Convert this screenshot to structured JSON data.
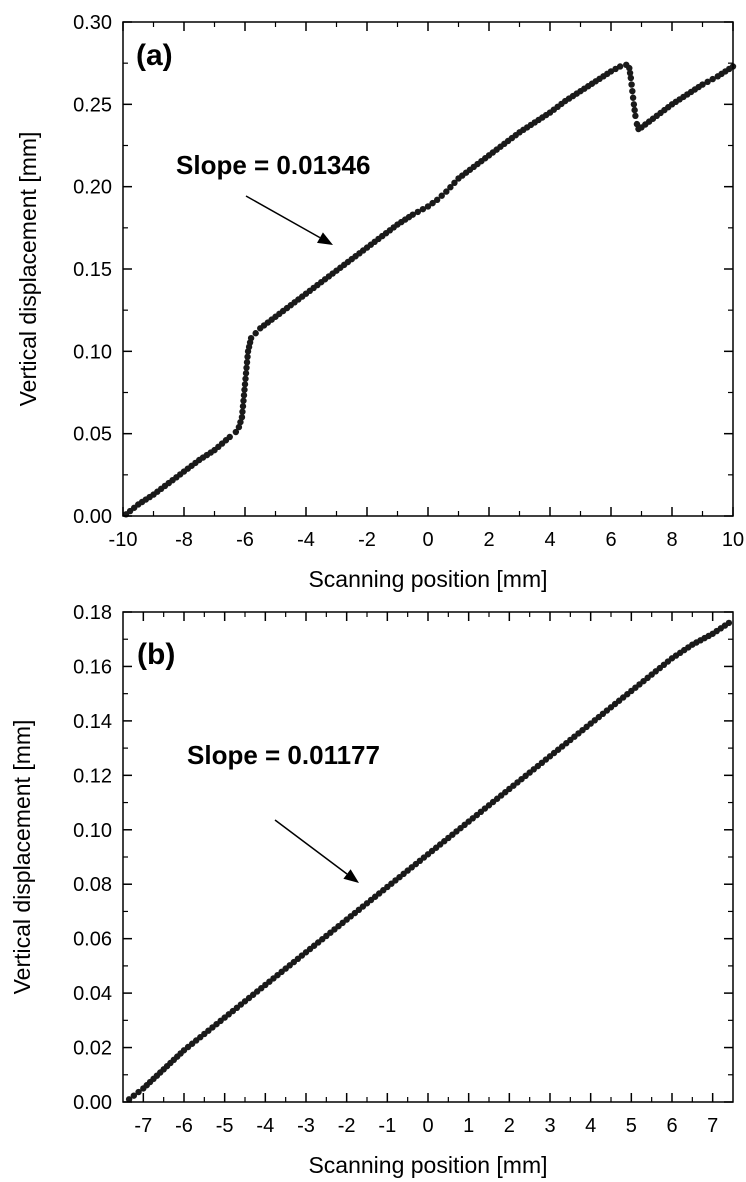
{
  "chart_data": [
    {
      "type": "scatter",
      "panel_label": "(a)",
      "xlabel": "Scanning position [mm]",
      "ylabel": "Vertical displacement [mm]",
      "xlim": [
        -10,
        10
      ],
      "ylim": [
        0,
        0.3
      ],
      "xticks": [
        -10,
        -8,
        -6,
        -4,
        -2,
        0,
        2,
        4,
        6,
        8,
        10
      ],
      "yticks": [
        "0.00",
        "0.05",
        "0.10",
        "0.15",
        "0.20",
        "0.25",
        "0.30"
      ],
      "annotation": "Slope = 0.01346",
      "series": [
        {
          "color": "#1a1a1a",
          "marker": "circle",
          "x": [
            -9.9,
            -9.5,
            -9.0,
            -8.5,
            -8.0,
            -7.5,
            -7.0,
            -6.5,
            -6.3,
            -6.2,
            -6.1,
            -6.05,
            -6.0,
            -5.95,
            -5.9,
            -5.8,
            -5.5,
            -5.0,
            -4.5,
            -4.0,
            -3.5,
            -3.0,
            -2.5,
            -2.0,
            -1.5,
            -1.0,
            -0.5,
            0.0,
            0.3,
            0.6,
            1.0,
            1.5,
            2.0,
            2.5,
            3.0,
            3.5,
            4.0,
            4.5,
            5.0,
            5.5,
            6.0,
            6.3,
            6.5,
            6.6,
            6.65,
            6.7,
            6.75,
            6.8,
            6.85,
            6.9,
            7.0,
            7.5,
            8.0,
            8.5,
            9.0,
            9.5,
            10.0
          ],
          "y": [
            0.001,
            0.007,
            0.013,
            0.02,
            0.027,
            0.034,
            0.04,
            0.048,
            0.051,
            0.054,
            0.06,
            0.07,
            0.08,
            0.09,
            0.1,
            0.108,
            0.114,
            0.121,
            0.128,
            0.135,
            0.142,
            0.149,
            0.156,
            0.163,
            0.17,
            0.177,
            0.183,
            0.188,
            0.192,
            0.197,
            0.205,
            0.212,
            0.219,
            0.226,
            0.233,
            0.239,
            0.245,
            0.252,
            0.258,
            0.264,
            0.27,
            0.273,
            0.274,
            0.272,
            0.266,
            0.258,
            0.25,
            0.243,
            0.238,
            0.235,
            0.236,
            0.243,
            0.25,
            0.256,
            0.262,
            0.267,
            0.273
          ]
        }
      ]
    },
    {
      "type": "scatter",
      "panel_label": "(b)",
      "xlabel": "Scanning position [mm]",
      "ylabel": "Vertical displacement [mm]",
      "xlim": [
        -7.5,
        7.5
      ],
      "ylim": [
        0,
        0.18
      ],
      "xticks": [
        -7,
        -6,
        -5,
        -4,
        -3,
        -2,
        -1,
        0,
        1,
        2,
        3,
        4,
        5,
        6,
        7
      ],
      "yticks": [
        "0.00",
        "0.02",
        "0.04",
        "0.06",
        "0.08",
        "0.10",
        "0.12",
        "0.14",
        "0.16",
        "0.18"
      ],
      "annotation": "Slope = 0.01177",
      "series": [
        {
          "color": "#1a1a1a",
          "marker": "circle",
          "x": [
            -7.35,
            -7.0,
            -6.5,
            -6.0,
            -5.5,
            -5.0,
            -4.5,
            -4.0,
            -3.5,
            -3.0,
            -2.5,
            -2.0,
            -1.5,
            -1.0,
            -0.5,
            0.0,
            0.5,
            1.0,
            1.5,
            2.0,
            2.5,
            3.0,
            3.5,
            4.0,
            4.5,
            5.0,
            5.5,
            6.0,
            6.5,
            7.0,
            7.4
          ],
          "y": [
            0.001,
            0.005,
            0.012,
            0.019,
            0.025,
            0.031,
            0.037,
            0.043,
            0.049,
            0.055,
            0.061,
            0.067,
            0.073,
            0.079,
            0.085,
            0.091,
            0.097,
            0.103,
            0.109,
            0.115,
            0.121,
            0.127,
            0.133,
            0.139,
            0.145,
            0.151,
            0.157,
            0.163,
            0.168,
            0.172,
            0.176
          ]
        }
      ]
    }
  ]
}
